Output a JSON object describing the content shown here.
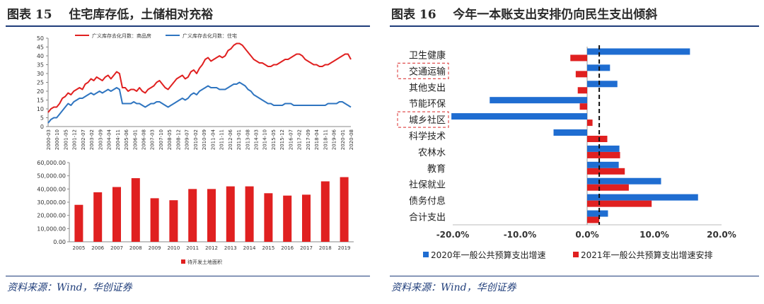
{
  "left_panel": {
    "figure_label": "图表 15",
    "title": "住宅库存低，土储相对充裕",
    "source": "资料来源：Wind，华创证券"
  },
  "right_panel": {
    "figure_label": "图表 16",
    "title": "今年一本账支出安排仍向民生支出倾斜",
    "source": "资料来源：Wind，华创证券"
  },
  "colors": {
    "red": "#e02020",
    "blue": "#2f75c0",
    "bar_blue": "#1f6dd1",
    "rule": "#1f3d7a",
    "highlight": "#e05050"
  },
  "chart_data": [
    {
      "type": "line",
      "title": "",
      "ylim": [
        0,
        50
      ],
      "yticks": [
        0,
        5,
        10,
        15,
        20,
        25,
        30,
        35,
        40,
        45,
        50
      ],
      "x_tick_labels": [
        "2000-03",
        "2000-10",
        "2001-05",
        "2001-12",
        "2002-07",
        "2003-02",
        "2003-09",
        "2004-04",
        "2004-11",
        "2005-06",
        "2006-01",
        "2006-08",
        "2007-03",
        "2007-10",
        "2008-05",
        "2008-12",
        "2009-07",
        "2010-02",
        "2010-09",
        "2011-04",
        "2011-11",
        "2012-06",
        "2013-01",
        "2013-08",
        "2014-03",
        "2014-10",
        "2015-05",
        "2015-12",
        "2016-07",
        "2017-02",
        "2017-09",
        "2018-04",
        "2018-11",
        "2019-06",
        "2020-01",
        "2020-08"
      ],
      "series": [
        {
          "name": "广义库存去化月数：商品房",
          "color": "#e02020",
          "x": [
            0,
            1,
            2,
            3,
            4,
            5,
            6,
            7,
            8,
            9,
            10,
            11,
            12,
            13,
            14,
            15,
            16,
            17,
            18,
            19,
            20,
            21,
            22,
            23,
            24,
            25,
            26,
            27,
            28,
            29,
            30,
            31,
            32,
            33,
            34,
            35,
            36,
            37,
            38,
            39,
            40,
            41,
            42,
            43,
            44,
            45,
            46,
            47,
            48,
            49,
            50,
            51,
            52,
            53,
            54,
            55,
            56,
            57,
            58,
            59,
            60,
            61,
            62,
            63,
            64,
            65,
            66,
            67,
            68,
            69,
            70,
            71,
            72,
            73,
            74,
            75,
            76,
            77,
            78,
            79,
            80,
            81,
            82,
            83,
            84,
            85,
            86,
            87,
            88,
            89,
            90,
            91,
            92,
            93,
            94,
            95,
            96,
            97,
            98,
            99,
            100,
            101,
            102,
            103,
            104,
            105,
            106
          ],
          "values": [
            8,
            10,
            11,
            11,
            13,
            16,
            17,
            19,
            18,
            20,
            21,
            22,
            21,
            24,
            25,
            27,
            26,
            28,
            27,
            26,
            28,
            29,
            27,
            29,
            31,
            30,
            22,
            22,
            20,
            21,
            21,
            20,
            22,
            20,
            19,
            21,
            22,
            23,
            25,
            26,
            24,
            22,
            21,
            23,
            25,
            27,
            28,
            29,
            27,
            28,
            31,
            32,
            30,
            33,
            35,
            38,
            39,
            37,
            38,
            39,
            40,
            39,
            40,
            43,
            44,
            46,
            47,
            47,
            46,
            44,
            42,
            40,
            38,
            37,
            36,
            36,
            35,
            34,
            34,
            35,
            35,
            36,
            37,
            38,
            38,
            39,
            40,
            41,
            41,
            40,
            38,
            37,
            36,
            35,
            35,
            34,
            34,
            35,
            35,
            36,
            37,
            38,
            39,
            40,
            41,
            41,
            38
          ]
        },
        {
          "name": "广义库存去化月数：住宅",
          "color": "#2f75c0",
          "x": [
            0,
            1,
            2,
            3,
            4,
            5,
            6,
            7,
            8,
            9,
            10,
            11,
            12,
            13,
            14,
            15,
            16,
            17,
            18,
            19,
            20,
            21,
            22,
            23,
            24,
            25,
            26,
            27,
            28,
            29,
            30,
            31,
            32,
            33,
            34,
            35,
            36,
            37,
            38,
            39,
            40,
            41,
            42,
            43,
            44,
            45,
            46,
            47,
            48,
            49,
            50,
            51,
            52,
            53,
            54,
            55,
            56,
            57,
            58,
            59,
            60,
            61,
            62,
            63,
            64,
            65,
            66,
            67,
            68,
            69,
            70,
            71,
            72,
            73,
            74,
            75,
            76,
            77,
            78,
            79,
            80,
            81,
            82,
            83,
            84,
            85,
            86,
            87,
            88,
            89,
            90,
            91,
            92,
            93,
            94,
            95,
            96,
            97,
            98,
            99,
            100,
            101,
            102,
            103,
            104,
            105,
            106
          ],
          "values": [
            2,
            4,
            5,
            5,
            7,
            9,
            11,
            13,
            12,
            14,
            15,
            16,
            16,
            17,
            18,
            19,
            18,
            19,
            20,
            19,
            20,
            21,
            20,
            21,
            22,
            21,
            13,
            13,
            13,
            13,
            14,
            13,
            13,
            12,
            11,
            12,
            13,
            13,
            14,
            14,
            13,
            12,
            11,
            12,
            13,
            14,
            15,
            16,
            15,
            16,
            18,
            19,
            18,
            20,
            21,
            22,
            23,
            22,
            22,
            22,
            21,
            21,
            21,
            22,
            23,
            24,
            24,
            25,
            24,
            23,
            21,
            20,
            18,
            17,
            16,
            15,
            14,
            13,
            13,
            12,
            12,
            12,
            12,
            13,
            13,
            13,
            12,
            12,
            12,
            12,
            12,
            12,
            12,
            12,
            12,
            12,
            12,
            12,
            13,
            13,
            13,
            13,
            14,
            14,
            13,
            12,
            11
          ]
        }
      ]
    },
    {
      "type": "bar",
      "title": "",
      "categories": [
        "2005",
        "2006",
        "2007",
        "2008",
        "2009",
        "2010",
        "2011",
        "2012",
        "2013",
        "2014",
        "2015",
        "2016",
        "2017",
        "2018",
        "2019"
      ],
      "values": [
        28000,
        37500,
        41500,
        48200,
        33000,
        31500,
        40000,
        40000,
        42000,
        42000,
        36800,
        35000,
        35700,
        45800,
        49000
      ],
      "ylim": [
        0,
        60000
      ],
      "yticks": [
        "0.00",
        "10,000.00",
        "20,000.00",
        "30,000.00",
        "40,000.00",
        "50,000.00",
        "60,000.00"
      ],
      "legend": "待开发土地面积",
      "color": "#e02020"
    },
    {
      "type": "bar",
      "orientation": "horizontal",
      "title": "",
      "categories": [
        "卫生健康",
        "交通运输",
        "其他支出",
        "节能环保",
        "城乡社区",
        "科学技术",
        "农林水",
        "教育",
        "社保就业",
        "债务付息",
        "合计支出"
      ],
      "highlighted": [
        "交通运输",
        "城乡社区"
      ],
      "series": [
        {
          "name": "2020年一般公共预算支出增速",
          "color": "#1f6dd1",
          "values": [
            15.3,
            3.4,
            4.5,
            -14.5,
            -20.2,
            -5.0,
            4.8,
            4.7,
            11.0,
            16.5,
            3.1
          ]
        },
        {
          "name": "2021年一般公共预算支出增速安排",
          "color": "#e02020",
          "values": [
            -2.5,
            -1.7,
            -1.4,
            -1.1,
            0.8,
            3.0,
            4.9,
            5.6,
            6.2,
            9.6,
            1.8
          ]
        }
      ],
      "xlim": [
        -20,
        20
      ],
      "xtick_labels": [
        "-20.0%",
        "-10.0%",
        "0.0%",
        "10.0%",
        "20.0%"
      ],
      "reference_line": 1.8
    }
  ]
}
